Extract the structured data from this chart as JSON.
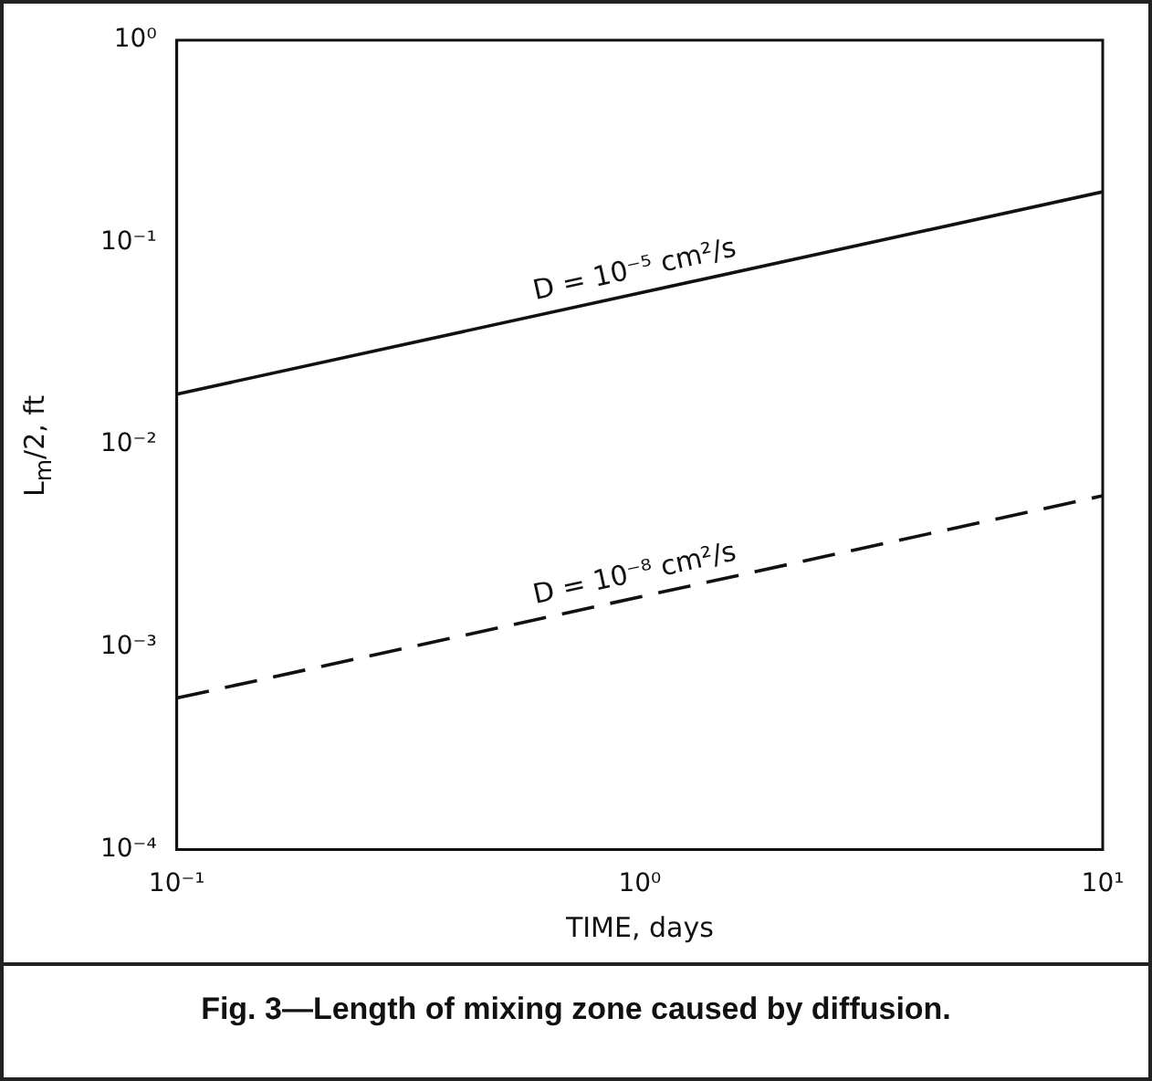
{
  "chart_data": {
    "type": "line",
    "xlabel": "TIME, days",
    "ylabel": "L$_{m}$/2, ft",
    "x": [
      0.1,
      10
    ],
    "series": [
      {
        "name": "D = 10⁻⁵ cm²/s",
        "color": "#111111",
        "values": [
          0.0178,
          0.178
        ],
        "line_style": "solid"
      },
      {
        "name": "D = 10⁻⁸ cm²/s",
        "color": "#111111",
        "values": [
          0.00056,
          0.0056
        ],
        "line_style": "dashed"
      }
    ],
    "log": "xy",
    "xlim": [
      0.1,
      10
    ],
    "ylim": [
      0.0001,
      1
    ],
    "xticks": [
      {
        "value": 0.1,
        "label": "10⁻¹"
      },
      {
        "value": 1,
        "label": "10⁰"
      },
      {
        "value": 10,
        "label": "10¹"
      }
    ],
    "yticks": [
      {
        "value": 0.0001,
        "label": "10⁻⁴"
      },
      {
        "value": 0.001,
        "label": "10⁻³"
      },
      {
        "value": 0.01,
        "label": "10⁻²"
      },
      {
        "value": 0.1,
        "label": "10⁻¹"
      },
      {
        "value": 1,
        "label": "10⁰"
      }
    ],
    "grid": false,
    "legend": false,
    "marker": "none",
    "annotations": [
      "Fig. 3—Length of mixing zone caused by diffusion."
    ]
  }
}
